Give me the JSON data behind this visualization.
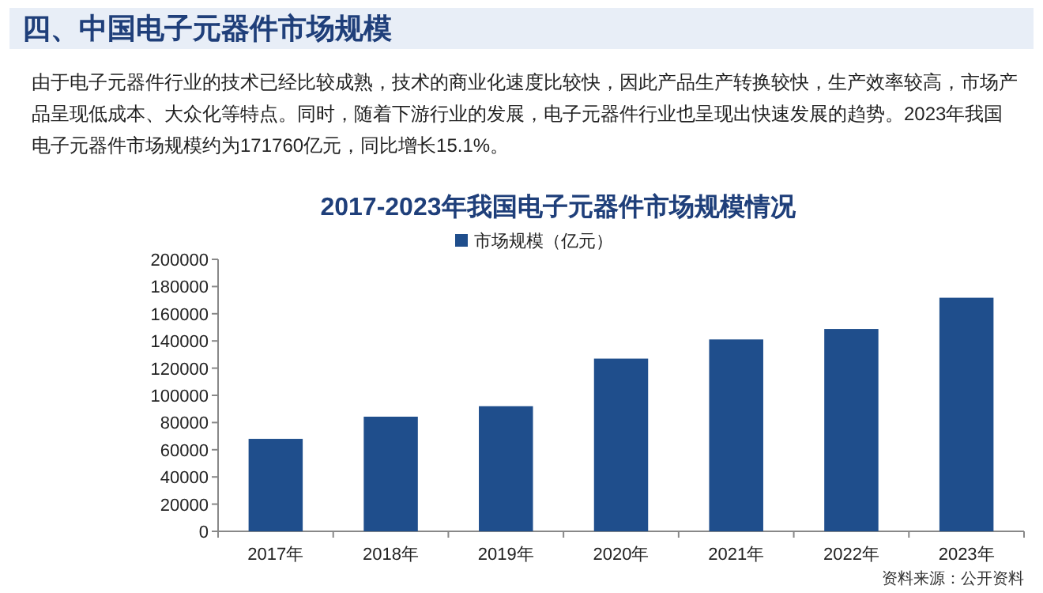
{
  "chart_data": {
    "type": "bar",
    "title": "2017-2023年我国电子元器件市场规模情况",
    "annotations": [
      "四、中国电子元器件市场规模",
      "由于电子元器件行业的技术已经比较成熟，技术的商业化速度比较快，因此产品生产转换较快，生产效率较高，市场产品呈现低成本、大众化等特点。同时，随着下游行业的发展，电子元器件行业也呈现出快速发展的趋势。2023年我国电子元器件市场规模约为171760亿元，同比增长15.1%。",
      "资料来源：公开资料"
    ],
    "categories": [
      "2017年",
      "2018年",
      "2019年",
      "2020年",
      "2021年",
      "2022年",
      "2023年"
    ],
    "series": [
      {
        "name": "市场规模（亿元）",
        "color": "#1f4e8c",
        "values": [
          68000,
          84300,
          92000,
          127000,
          141100,
          148800,
          171760
        ]
      }
    ],
    "ylim": [
      0,
      200000
    ],
    "yticks": [
      0,
      20000,
      40000,
      60000,
      80000,
      100000,
      120000,
      140000,
      160000,
      180000,
      200000
    ],
    "grid": false,
    "legend": "top"
  }
}
